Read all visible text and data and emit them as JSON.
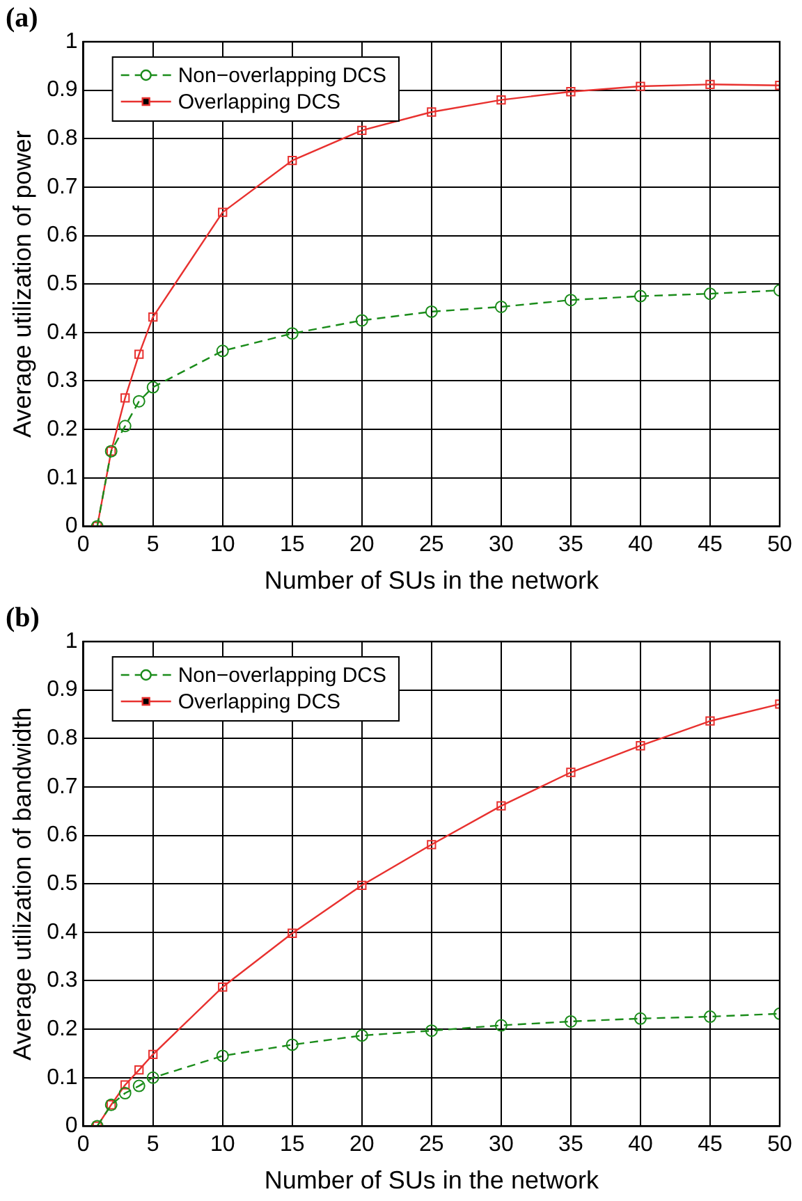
{
  "chart_data": [
    {
      "type": "line",
      "title": "(a)",
      "xlabel": "Number of SUs in the network",
      "ylabel": "Average utilization of power",
      "x": [
        1,
        2,
        3,
        4,
        5,
        10,
        15,
        20,
        25,
        30,
        35,
        40,
        45,
        50
      ],
      "xlim": [
        0,
        50
      ],
      "xticks": [
        0,
        5,
        10,
        15,
        20,
        25,
        30,
        35,
        40,
        45,
        50
      ],
      "ylim": [
        0,
        1
      ],
      "yticks": [
        0,
        0.1,
        0.2,
        0.3,
        0.4,
        0.5,
        0.6,
        0.7,
        0.8,
        0.9,
        1
      ],
      "grid": true,
      "legend": "top left",
      "series": [
        {
          "name": "Non−overlapping DCS",
          "color": "#1a8c1a",
          "marker": "circle",
          "line_style": "dashed",
          "values": [
            0,
            0.155,
            0.207,
            0.258,
            0.287,
            0.362,
            0.398,
            0.425,
            0.443,
            0.453,
            0.467,
            0.475,
            0.48,
            0.487
          ]
        },
        {
          "name": "Overlapping DCS",
          "color": "#e8312f",
          "marker": "square",
          "line_style": "solid",
          "values": [
            0,
            0.155,
            0.265,
            0.355,
            0.432,
            0.648,
            0.755,
            0.817,
            0.855,
            0.88,
            0.897,
            0.908,
            0.912,
            0.91
          ]
        }
      ]
    },
    {
      "type": "line",
      "title": "(b)",
      "xlabel": "Number of SUs in the network",
      "ylabel": "Average utilization of bandwidth",
      "x": [
        1,
        2,
        3,
        4,
        5,
        10,
        15,
        20,
        25,
        30,
        35,
        40,
        45,
        50
      ],
      "xlim": [
        0,
        50
      ],
      "xticks": [
        0,
        5,
        10,
        15,
        20,
        25,
        30,
        35,
        40,
        45,
        50
      ],
      "ylim": [
        0,
        1
      ],
      "yticks": [
        0,
        0.1,
        0.2,
        0.3,
        0.4,
        0.5,
        0.6,
        0.7,
        0.8,
        0.9,
        1
      ],
      "grid": true,
      "legend": "top left",
      "series": [
        {
          "name": "Non−overlapping DCS",
          "color": "#1a8c1a",
          "marker": "circle",
          "line_style": "dashed",
          "values": [
            0,
            0.044,
            0.068,
            0.083,
            0.1,
            0.145,
            0.168,
            0.187,
            0.197,
            0.208,
            0.216,
            0.222,
            0.226,
            0.232
          ]
        },
        {
          "name": "Overlapping DCS",
          "color": "#e8312f",
          "marker": "square",
          "line_style": "solid",
          "values": [
            0,
            0.044,
            0.085,
            0.116,
            0.148,
            0.287,
            0.398,
            0.497,
            0.581,
            0.661,
            0.73,
            0.785,
            0.836,
            0.871
          ]
        }
      ]
    }
  ]
}
